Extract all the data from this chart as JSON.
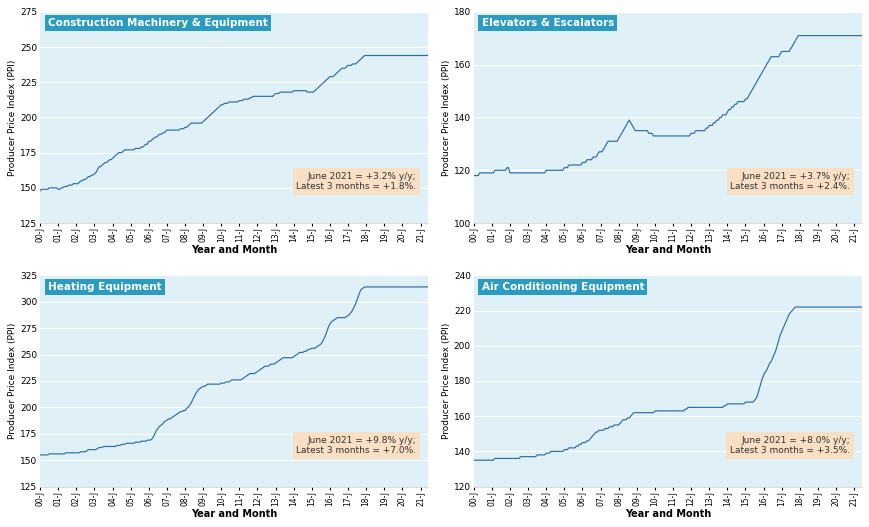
{
  "subplots": [
    {
      "title": "Construction Machinery & Equipment",
      "annotation": "June 2021 = +3.2% y/y;\nLatest 3 months = +1.8%.",
      "ylim": [
        125,
        275
      ],
      "yticks": [
        125,
        150,
        175,
        200,
        225,
        250,
        275
      ],
      "data": [
        148,
        149,
        149,
        149,
        149,
        149,
        150,
        150,
        150,
        150,
        150,
        150,
        149,
        149,
        150,
        150,
        151,
        151,
        151,
        152,
        152,
        152,
        153,
        153,
        153,
        153,
        154,
        155,
        155,
        156,
        156,
        157,
        158,
        158,
        159,
        159,
        160,
        161,
        163,
        165,
        165,
        166,
        167,
        168,
        168,
        169,
        170,
        170,
        171,
        172,
        173,
        174,
        175,
        175,
        175,
        176,
        177,
        177,
        177,
        177,
        177,
        177,
        177,
        178,
        178,
        178,
        178,
        179,
        179,
        180,
        181,
        181,
        183,
        183,
        184,
        185,
        186,
        186,
        187,
        188,
        188,
        189,
        189,
        190,
        191,
        191,
        191,
        191,
        191,
        191,
        191,
        191,
        191,
        192,
        192,
        192,
        193,
        193,
        194,
        195,
        196,
        196,
        196,
        196,
        196,
        196,
        196,
        196,
        197,
        198,
        199,
        200,
        201,
        202,
        203,
        204,
        205,
        206,
        207,
        208,
        209,
        209,
        210,
        210,
        210,
        211,
        211,
        211,
        211,
        211,
        211,
        211,
        212,
        212,
        212,
        213,
        213,
        213,
        213,
        214,
        214,
        215,
        215,
        215,
        215,
        215,
        215,
        215,
        215,
        215,
        215,
        215,
        215,
        215,
        215,
        216,
        217,
        217,
        217,
        218,
        218,
        218,
        218,
        218,
        218,
        218,
        218,
        218,
        219,
        219,
        219,
        219,
        219,
        219,
        219,
        219,
        219,
        218,
        218,
        218,
        218,
        218,
        219,
        220,
        221,
        222,
        223,
        224,
        225,
        226,
        227,
        228,
        229,
        229,
        229,
        230,
        231,
        232,
        233,
        234,
        235,
        235,
        235,
        236,
        237,
        237,
        237,
        238,
        238,
        238,
        239,
        240,
        241,
        242,
        243,
        244,
        244,
        244,
        244,
        244,
        244,
        244,
        244,
        244,
        244,
        244,
        244,
        244,
        244,
        244,
        244,
        244,
        244,
        244,
        244,
        244,
        244,
        244,
        244,
        244,
        244,
        244,
        244,
        244,
        244,
        244,
        244,
        244,
        244,
        244,
        244,
        244,
        244,
        244,
        244,
        244,
        244,
        244,
        244,
        244,
        244,
        244
      ]
    },
    {
      "title": "Elevators & Escalators",
      "annotation": "June 2021 = +3.7% y/y;\nLatest 3 months = +2.4%.",
      "ylim": [
        100,
        180
      ],
      "yticks": [
        100,
        120,
        140,
        160,
        180
      ],
      "data": [
        118,
        118,
        118,
        118,
        119,
        119,
        119,
        119,
        119,
        119,
        119,
        119,
        119,
        119,
        120,
        120,
        120,
        120,
        120,
        120,
        120,
        120,
        121,
        121,
        119,
        119,
        119,
        119,
        119,
        119,
        119,
        119,
        119,
        119,
        119,
        119,
        119,
        119,
        119,
        119,
        119,
        119,
        119,
        119,
        119,
        119,
        119,
        119,
        120,
        120,
        120,
        120,
        120,
        120,
        120,
        120,
        120,
        120,
        120,
        120,
        121,
        121,
        121,
        122,
        122,
        122,
        122,
        122,
        122,
        122,
        122,
        122,
        123,
        123,
        123,
        124,
        124,
        124,
        124,
        125,
        125,
        125,
        126,
        127,
        127,
        127,
        128,
        129,
        130,
        131,
        131,
        131,
        131,
        131,
        131,
        131,
        132,
        133,
        134,
        135,
        136,
        137,
        138,
        139,
        138,
        137,
        136,
        135,
        135,
        135,
        135,
        135,
        135,
        135,
        135,
        135,
        134,
        134,
        134,
        133,
        133,
        133,
        133,
        133,
        133,
        133,
        133,
        133,
        133,
        133,
        133,
        133,
        133,
        133,
        133,
        133,
        133,
        133,
        133,
        133,
        133,
        133,
        133,
        133,
        134,
        134,
        134,
        135,
        135,
        135,
        135,
        135,
        135,
        135,
        136,
        136,
        137,
        137,
        137,
        138,
        138,
        139,
        139,
        140,
        140,
        141,
        141,
        141,
        142,
        143,
        143,
        144,
        144,
        145,
        145,
        146,
        146,
        146,
        146,
        146,
        147,
        147,
        148,
        149,
        150,
        151,
        152,
        153,
        154,
        155,
        156,
        157,
        158,
        159,
        160,
        161,
        162,
        163,
        163,
        163,
        163,
        163,
        163,
        164,
        165,
        165,
        165,
        165,
        165,
        165,
        166,
        167,
        168,
        169,
        170,
        171,
        171,
        171,
        171,
        171,
        171,
        171,
        171,
        171,
        171,
        171,
        171,
        171,
        171,
        171,
        171,
        171,
        171,
        171,
        171,
        171,
        171,
        171,
        171,
        171,
        171,
        171,
        171,
        171,
        171,
        171,
        171,
        171,
        171,
        171,
        171,
        171,
        171,
        171,
        171,
        171,
        171,
        171,
        171,
        171,
        171,
        171
      ]
    },
    {
      "title": "Heating Equipment",
      "annotation": "June 2021 = +9.8% y/y;\nLatest 3 months = +7.0%.",
      "ylim": [
        125,
        325
      ],
      "yticks": [
        125,
        150,
        175,
        200,
        225,
        250,
        275,
        300,
        325
      ],
      "data": [
        155,
        155,
        155,
        155,
        155,
        155,
        156,
        156,
        156,
        156,
        156,
        156,
        156,
        156,
        156,
        156,
        156,
        157,
        157,
        157,
        157,
        157,
        157,
        157,
        157,
        157,
        157,
        158,
        158,
        158,
        158,
        159,
        160,
        160,
        160,
        160,
        160,
        160,
        161,
        162,
        162,
        162,
        163,
        163,
        163,
        163,
        163,
        163,
        163,
        163,
        163,
        164,
        164,
        164,
        165,
        165,
        165,
        166,
        166,
        166,
        166,
        166,
        166,
        167,
        167,
        167,
        167,
        168,
        168,
        168,
        168,
        169,
        169,
        169,
        170,
        172,
        175,
        178,
        180,
        182,
        183,
        184,
        186,
        187,
        188,
        189,
        189,
        190,
        191,
        192,
        193,
        194,
        195,
        196,
        196,
        197,
        197,
        199,
        200,
        202,
        204,
        207,
        210,
        213,
        215,
        217,
        218,
        219,
        220,
        220,
        221,
        222,
        222,
        222,
        222,
        222,
        222,
        222,
        222,
        222,
        223,
        223,
        223,
        224,
        224,
        224,
        225,
        226,
        226,
        226,
        226,
        226,
        226,
        226,
        227,
        228,
        229,
        230,
        231,
        232,
        232,
        232,
        232,
        233,
        234,
        235,
        236,
        237,
        238,
        239,
        239,
        239,
        240,
        241,
        241,
        241,
        242,
        243,
        244,
        245,
        246,
        247,
        247,
        247,
        247,
        247,
        247,
        247,
        248,
        249,
        250,
        251,
        252,
        252,
        252,
        253,
        253,
        254,
        255,
        255,
        256,
        256,
        256,
        257,
        258,
        259,
        260,
        262,
        265,
        268,
        272,
        276,
        279,
        281,
        282,
        283,
        284,
        285,
        285,
        285,
        285,
        285,
        285,
        286,
        287,
        288,
        290,
        292,
        295,
        298,
        302,
        306,
        310,
        312,
        313,
        314,
        314,
        314,
        314,
        314,
        314,
        314,
        314,
        314,
        314,
        314,
        314,
        314,
        314,
        314,
        314,
        314,
        314,
        314,
        314,
        314,
        314,
        314,
        314,
        314,
        314,
        314,
        314,
        314,
        314,
        314,
        314,
        314,
        314,
        314,
        314,
        314,
        314,
        314,
        314,
        314,
        314,
        314,
        314,
        314,
        314,
        314
      ]
    },
    {
      "title": "Air Conditioning Equipment",
      "annotation": "June 2021 = +8.0% y/y;\nLatest 3 months = +3.5%.",
      "ylim": [
        120,
        240
      ],
      "yticks": [
        120,
        140,
        160,
        180,
        200,
        220,
        240
      ],
      "data": [
        135,
        135,
        135,
        135,
        135,
        135,
        135,
        135,
        135,
        135,
        135,
        135,
        135,
        135,
        136,
        136,
        136,
        136,
        136,
        136,
        136,
        136,
        136,
        136,
        136,
        136,
        136,
        136,
        136,
        136,
        136,
        137,
        137,
        137,
        137,
        137,
        137,
        137,
        137,
        137,
        137,
        137,
        138,
        138,
        138,
        138,
        138,
        138,
        139,
        139,
        139,
        140,
        140,
        140,
        140,
        140,
        140,
        140,
        140,
        140,
        141,
        141,
        141,
        142,
        142,
        142,
        142,
        142,
        143,
        143,
        144,
        144,
        145,
        145,
        145,
        146,
        146,
        147,
        148,
        149,
        150,
        151,
        151,
        152,
        152,
        152,
        152,
        153,
        153,
        153,
        154,
        154,
        154,
        155,
        155,
        155,
        155,
        156,
        157,
        158,
        158,
        158,
        159,
        159,
        160,
        161,
        162,
        162,
        162,
        162,
        162,
        162,
        162,
        162,
        162,
        162,
        162,
        162,
        162,
        162,
        163,
        163,
        163,
        163,
        163,
        163,
        163,
        163,
        163,
        163,
        163,
        163,
        163,
        163,
        163,
        163,
        163,
        163,
        163,
        163,
        164,
        164,
        165,
        165,
        165,
        165,
        165,
        165,
        165,
        165,
        165,
        165,
        165,
        165,
        165,
        165,
        165,
        165,
        165,
        165,
        165,
        165,
        165,
        165,
        165,
        165,
        166,
        166,
        167,
        167,
        167,
        167,
        167,
        167,
        167,
        167,
        167,
        167,
        167,
        167,
        168,
        168,
        168,
        168,
        168,
        168,
        169,
        170,
        172,
        175,
        178,
        181,
        183,
        185,
        186,
        188,
        190,
        191,
        193,
        195,
        197,
        200,
        203,
        206,
        208,
        210,
        212,
        214,
        216,
        218,
        219,
        220,
        221,
        222,
        222,
        222,
        222,
        222,
        222,
        222,
        222,
        222,
        222,
        222,
        222,
        222,
        222,
        222,
        222,
        222,
        222,
        222,
        222,
        222,
        222,
        222,
        222,
        222,
        222,
        222,
        222,
        222,
        222,
        222,
        222,
        222,
        222,
        222,
        222,
        222,
        222,
        222,
        222,
        222,
        222,
        222,
        222,
        222,
        222,
        222,
        222,
        222
      ]
    }
  ],
  "n_points": 262,
  "xtick_labels": [
    "00-J",
    "01-J",
    "02-J",
    "03-J",
    "04-J",
    "05-J",
    "06-J",
    "07-J",
    "08-J",
    "09-J",
    "10-J",
    "11-J",
    "12-J",
    "13-J",
    "14-J",
    "15-J",
    "16-J",
    "17-J",
    "18-J",
    "19-J",
    "20-J",
    "21-J"
  ],
  "xlabel": "Year and Month",
  "ylabel": "Producer Price Index (PPI)",
  "line_color": "#2E6DA4",
  "bg_color": "#DFF0F7",
  "title_bg_color": "#2B9BBF",
  "title_text_color": "#FFFFFF",
  "annotation_bg_color": "#FCDEC0",
  "annotation_text_color": "#333333",
  "figure_bg_color": "#FFFFFF",
  "grid_color": "#FFFFFF",
  "spine_color": "#CCCCCC"
}
